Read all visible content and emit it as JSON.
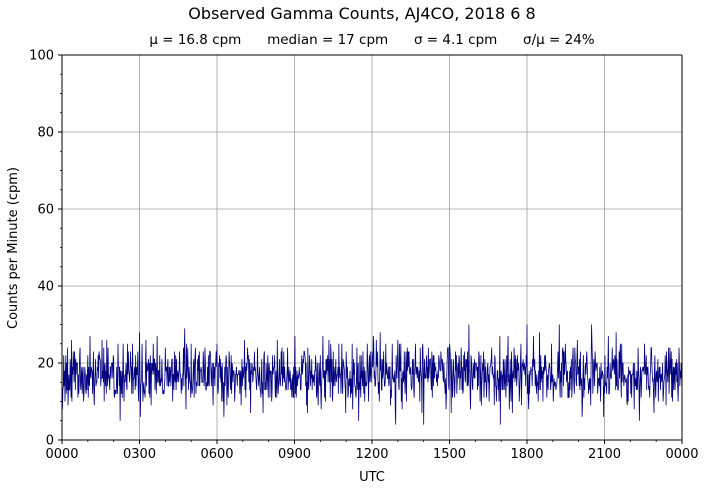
{
  "chart_data": {
    "type": "line",
    "title": "Observed Gamma Counts, AJ4CO, 2018 6 8",
    "subtitle": "μ = 16.8 cpm      median = 17 cpm      σ = 4.1 cpm      σ/μ = 24%",
    "xlabel": "UTC",
    "ylabel": "Counts per Minute (cpm)",
    "xlim": [
      0,
      1440
    ],
    "ylim": [
      0,
      100
    ],
    "x_tick_labels": [
      "0000",
      "0300",
      "0600",
      "0900",
      "1200",
      "1500",
      "1800",
      "2100",
      "0000"
    ],
    "y_ticks": [
      0,
      20,
      40,
      60,
      80,
      100
    ],
    "grid": true,
    "series": [
      {
        "color": "#000080",
        "x_unit": "minutes UTC",
        "points_per_minute": 1,
        "mean": 16.8,
        "median": 17,
        "std": 4.1,
        "min": 4,
        "max": 30,
        "notable_peaks": [
          {
            "x_utc": "0300",
            "y": 28
          },
          {
            "x_utc": "0445",
            "y": 29
          },
          {
            "x_utc": "1545",
            "y": 30
          },
          {
            "x_utc": "1800",
            "y": 30
          },
          {
            "x_utc": "1915",
            "y": 30
          },
          {
            "x_utc": "2030",
            "y": 30
          }
        ]
      }
    ]
  }
}
